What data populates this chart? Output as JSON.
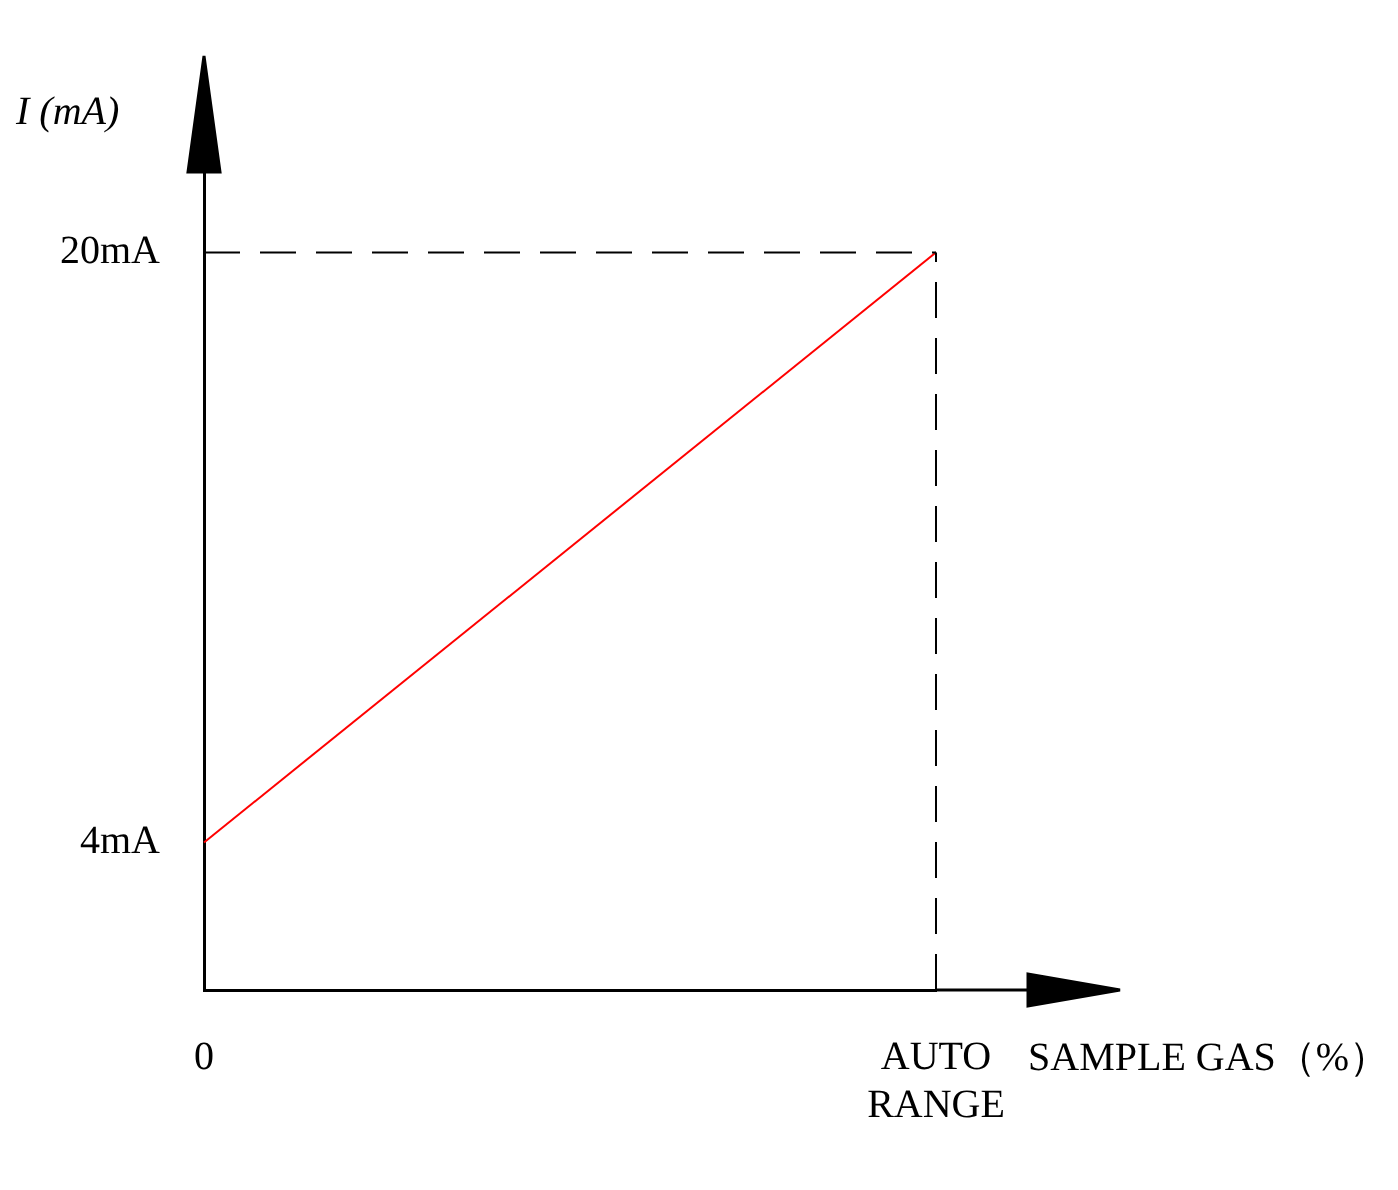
{
  "chart_data": {
    "type": "line",
    "xlabel": "SAMPLE GAS（%）",
    "ylabel": "I (mA)",
    "categories": [
      "0",
      "AUTO RANGE"
    ],
    "series": [
      {
        "color": "#ff0000",
        "values": [
          4,
          20
        ]
      }
    ],
    "ylim": [
      0,
      25
    ],
    "yticks": [
      {
        "value": 4,
        "label": "4mA"
      },
      {
        "value": 20,
        "label": "20mA"
      }
    ],
    "ref_lines": [
      {
        "axis": "y",
        "value": 20,
        "line_style": "dashed",
        "color": "#000000"
      },
      {
        "axis": "x",
        "value": "AUTO RANGE",
        "line_style": "dashed",
        "color": "#000000"
      }
    ],
    "grid": false,
    "legend": false,
    "marker": "none",
    "line_style": "solid"
  }
}
